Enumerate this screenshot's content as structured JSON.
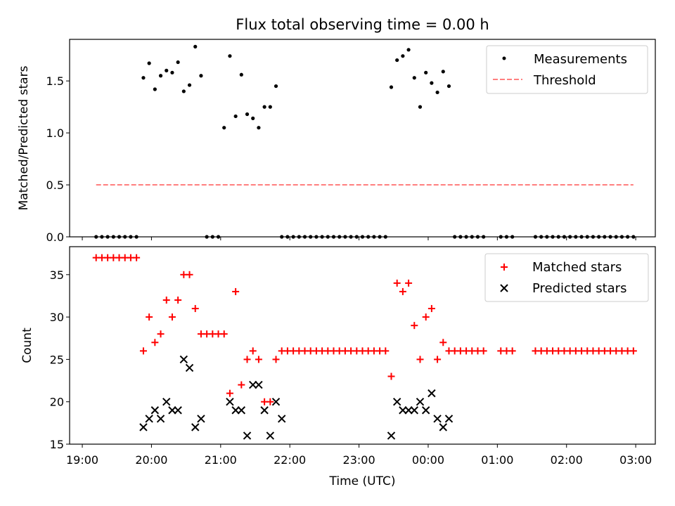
{
  "chart_data": [
    {
      "type": "scatter",
      "title": "Flux total observing time = 0.00 h",
      "ylabel": "Matched/Predicted stars",
      "xlabel": "",
      "ylim": [
        0,
        1.9
      ],
      "yticks": [
        "0.0",
        "0.5",
        "1.0",
        "1.5"
      ],
      "ytick_values": [
        0,
        0.5,
        1.0,
        1.5
      ],
      "legend_position": "upper right",
      "series": [
        {
          "name": "Measurements",
          "style": "points",
          "color": "#000000",
          "points": [
            [
              "19:12",
              0
            ],
            [
              "19:17",
              0
            ],
            [
              "19:22",
              0
            ],
            [
              "19:27",
              0
            ],
            [
              "19:32",
              0
            ],
            [
              "19:37",
              0
            ],
            [
              "19:42",
              0
            ],
            [
              "19:47",
              0
            ],
            [
              "19:53",
              1.53
            ],
            [
              "19:58",
              1.67
            ],
            [
              "20:03",
              1.42
            ],
            [
              "20:08",
              1.55
            ],
            [
              "20:13",
              1.6
            ],
            [
              "20:18",
              1.58
            ],
            [
              "20:23",
              1.68
            ],
            [
              "20:28",
              1.4
            ],
            [
              "20:33",
              1.46
            ],
            [
              "20:38",
              1.83
            ],
            [
              "20:43",
              1.55
            ],
            [
              "20:48",
              0
            ],
            [
              "20:53",
              0
            ],
            [
              "20:58",
              0
            ],
            [
              "21:03",
              1.05
            ],
            [
              "21:08",
              1.74
            ],
            [
              "21:13",
              1.16
            ],
            [
              "21:18",
              1.56
            ],
            [
              "21:23",
              1.18
            ],
            [
              "21:28",
              1.14
            ],
            [
              "21:33",
              1.05
            ],
            [
              "21:38",
              1.25
            ],
            [
              "21:43",
              1.25
            ],
            [
              "21:48",
              1.45
            ],
            [
              "21:53",
              0
            ],
            [
              "21:58",
              0
            ],
            [
              "22:03",
              0
            ],
            [
              "22:08",
              0
            ],
            [
              "22:13",
              0
            ],
            [
              "22:18",
              0
            ],
            [
              "22:23",
              0
            ],
            [
              "22:28",
              0
            ],
            [
              "22:33",
              0
            ],
            [
              "22:38",
              0
            ],
            [
              "22:43",
              0
            ],
            [
              "22:48",
              0
            ],
            [
              "22:53",
              0
            ],
            [
              "22:58",
              0
            ],
            [
              "23:03",
              0
            ],
            [
              "23:08",
              0
            ],
            [
              "23:13",
              0
            ],
            [
              "23:18",
              0
            ],
            [
              "23:23",
              0
            ],
            [
              "23:28",
              1.44
            ],
            [
              "23:33",
              1.7
            ],
            [
              "23:38",
              1.74
            ],
            [
              "23:43",
              1.8
            ],
            [
              "23:48",
              1.53
            ],
            [
              "23:53",
              1.25
            ],
            [
              "23:58",
              1.58
            ],
            [
              "00:03",
              1.48
            ],
            [
              "00:08",
              1.39
            ],
            [
              "00:13",
              1.59
            ],
            [
              "00:18",
              1.45
            ],
            [
              "00:23",
              0
            ],
            [
              "00:28",
              0
            ],
            [
              "00:33",
              0
            ],
            [
              "00:38",
              0
            ],
            [
              "00:43",
              0
            ],
            [
              "00:48",
              0
            ],
            [
              "01:03",
              0
            ],
            [
              "01:08",
              0
            ],
            [
              "01:13",
              0
            ],
            [
              "01:33",
              0
            ],
            [
              "01:38",
              0
            ],
            [
              "01:43",
              0
            ],
            [
              "01:48",
              0
            ],
            [
              "01:53",
              0
            ],
            [
              "01:58",
              0
            ],
            [
              "02:03",
              0
            ],
            [
              "02:08",
              0
            ],
            [
              "02:13",
              0
            ],
            [
              "02:18",
              0
            ],
            [
              "02:23",
              0
            ],
            [
              "02:28",
              0
            ],
            [
              "02:33",
              0
            ],
            [
              "02:38",
              0
            ],
            [
              "02:43",
              0
            ],
            [
              "02:48",
              0
            ],
            [
              "02:53",
              0
            ],
            [
              "02:58",
              0
            ]
          ]
        },
        {
          "name": "Threshold",
          "style": "dashed-line",
          "color": "#ff7f7f",
          "points": [
            [
              "19:12",
              0.5
            ],
            [
              "02:58",
              0.5
            ]
          ]
        }
      ]
    },
    {
      "type": "scatter",
      "title": "",
      "xlabel": "Time (UTC)",
      "ylabel": "Count",
      "ylim": [
        15,
        38.3
      ],
      "yticks": [
        "15",
        "20",
        "25",
        "30",
        "35"
      ],
      "ytick_values": [
        15,
        20,
        25,
        30,
        35
      ],
      "xticks": [
        "19:00",
        "20:00",
        "21:00",
        "22:00",
        "23:00",
        "00:00",
        "01:00",
        "02:00",
        "03:00"
      ],
      "x_range": [
        "18:49",
        "03:17 (next day)"
      ],
      "legend_position": "upper right",
      "series": [
        {
          "name": "Matched stars",
          "marker": "plus",
          "color": "#ff0000",
          "points": [
            [
              "19:12",
              37
            ],
            [
              "19:17",
              37
            ],
            [
              "19:22",
              37
            ],
            [
              "19:27",
              37
            ],
            [
              "19:32",
              37
            ],
            [
              "19:37",
              37
            ],
            [
              "19:42",
              37
            ],
            [
              "19:47",
              37
            ],
            [
              "19:53",
              26
            ],
            [
              "19:58",
              30
            ],
            [
              "20:03",
              27
            ],
            [
              "20:08",
              28
            ],
            [
              "20:13",
              32
            ],
            [
              "20:18",
              30
            ],
            [
              "20:23",
              32
            ],
            [
              "20:28",
              35
            ],
            [
              "20:33",
              35
            ],
            [
              "20:38",
              31
            ],
            [
              "20:43",
              28
            ],
            [
              "20:48",
              28
            ],
            [
              "20:53",
              28
            ],
            [
              "20:58",
              28
            ],
            [
              "21:03",
              28
            ],
            [
              "21:08",
              21
            ],
            [
              "21:13",
              33
            ],
            [
              "21:18",
              22
            ],
            [
              "21:23",
              25
            ],
            [
              "21:28",
              26
            ],
            [
              "21:33",
              25
            ],
            [
              "21:38",
              20
            ],
            [
              "21:43",
              20
            ],
            [
              "21:48",
              25
            ],
            [
              "21:53",
              26
            ],
            [
              "21:58",
              26
            ],
            [
              "22:03",
              26
            ],
            [
              "22:08",
              26
            ],
            [
              "22:13",
              26
            ],
            [
              "22:18",
              26
            ],
            [
              "22:23",
              26
            ],
            [
              "22:28",
              26
            ],
            [
              "22:33",
              26
            ],
            [
              "22:38",
              26
            ],
            [
              "22:43",
              26
            ],
            [
              "22:48",
              26
            ],
            [
              "22:53",
              26
            ],
            [
              "22:58",
              26
            ],
            [
              "23:03",
              26
            ],
            [
              "23:08",
              26
            ],
            [
              "23:13",
              26
            ],
            [
              "23:18",
              26
            ],
            [
              "23:23",
              26
            ],
            [
              "23:28",
              23
            ],
            [
              "23:33",
              34
            ],
            [
              "23:38",
              33
            ],
            [
              "23:43",
              34
            ],
            [
              "23:48",
              29
            ],
            [
              "23:53",
              25
            ],
            [
              "23:58",
              30
            ],
            [
              "00:03",
              31
            ],
            [
              "00:08",
              25
            ],
            [
              "00:13",
              27
            ],
            [
              "00:18",
              26
            ],
            [
              "00:23",
              26
            ],
            [
              "00:28",
              26
            ],
            [
              "00:33",
              26
            ],
            [
              "00:38",
              26
            ],
            [
              "00:43",
              26
            ],
            [
              "00:48",
              26
            ],
            [
              "01:03",
              26
            ],
            [
              "01:08",
              26
            ],
            [
              "01:13",
              26
            ],
            [
              "01:33",
              26
            ],
            [
              "01:38",
              26
            ],
            [
              "01:43",
              26
            ],
            [
              "01:48",
              26
            ],
            [
              "01:53",
              26
            ],
            [
              "01:58",
              26
            ],
            [
              "02:03",
              26
            ],
            [
              "02:08",
              26
            ],
            [
              "02:13",
              26
            ],
            [
              "02:18",
              26
            ],
            [
              "02:23",
              26
            ],
            [
              "02:28",
              26
            ],
            [
              "02:33",
              26
            ],
            [
              "02:38",
              26
            ],
            [
              "02:43",
              26
            ],
            [
              "02:48",
              26
            ],
            [
              "02:53",
              26
            ],
            [
              "02:58",
              26
            ]
          ]
        },
        {
          "name": "Predicted stars",
          "marker": "x",
          "color": "#000000",
          "points": [
            [
              "19:53",
              17
            ],
            [
              "19:58",
              18
            ],
            [
              "20:03",
              19
            ],
            [
              "20:08",
              18
            ],
            [
              "20:13",
              20
            ],
            [
              "20:18",
              19
            ],
            [
              "20:23",
              19
            ],
            [
              "20:28",
              25
            ],
            [
              "20:33",
              24
            ],
            [
              "20:38",
              17
            ],
            [
              "20:43",
              18
            ],
            [
              "21:08",
              20
            ],
            [
              "21:13",
              19
            ],
            [
              "21:18",
              19
            ],
            [
              "21:23",
              16
            ],
            [
              "21:28",
              22
            ],
            [
              "21:33",
              22
            ],
            [
              "21:38",
              19
            ],
            [
              "21:43",
              16
            ],
            [
              "21:48",
              20
            ],
            [
              "21:53",
              18
            ],
            [
              "23:28",
              16
            ],
            [
              "23:33",
              20
            ],
            [
              "23:38",
              19
            ],
            [
              "23:43",
              19
            ],
            [
              "23:48",
              19
            ],
            [
              "23:53",
              20
            ],
            [
              "23:58",
              19
            ],
            [
              "00:03",
              21
            ],
            [
              "00:08",
              18
            ],
            [
              "00:13",
              17
            ],
            [
              "00:18",
              18
            ]
          ]
        }
      ]
    }
  ]
}
